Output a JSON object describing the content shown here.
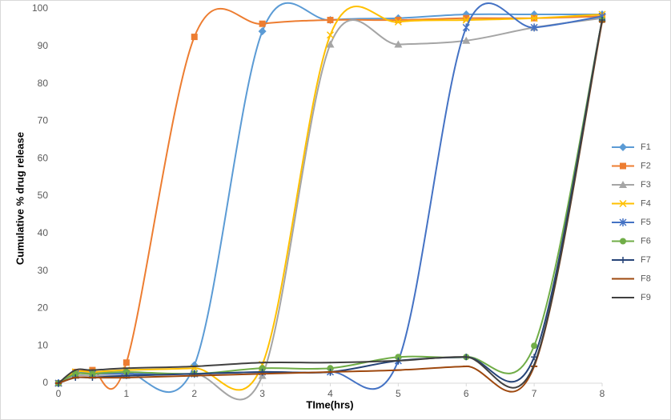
{
  "chart_data": {
    "type": "line",
    "xlabel": "TIme(hrs)",
    "ylabel": "Cumulative % drug release",
    "x": [
      0,
      0.25,
      0.5,
      1,
      2,
      3,
      4,
      5,
      6,
      7,
      8
    ],
    "xlim": [
      0,
      8
    ],
    "xticks": [
      0,
      1,
      2,
      3,
      4,
      5,
      6,
      7,
      8
    ],
    "ylim": [
      0,
      100
    ],
    "yticks": [
      0,
      10,
      20,
      30,
      40,
      50,
      60,
      70,
      80,
      90,
      100
    ],
    "grid": false,
    "legend": "right",
    "series": [
      {
        "name": "F1",
        "color": "#5b9bd5",
        "marker": "diamond",
        "values": [
          0,
          2.5,
          3,
          3,
          4.8,
          94,
          97,
          97.5,
          98.5,
          98.5,
          98.5
        ]
      },
      {
        "name": "F2",
        "color": "#ed7d31",
        "marker": "square",
        "values": [
          0,
          3,
          3.5,
          5.5,
          92.5,
          96,
          97,
          97,
          97.5,
          97.5,
          98
        ]
      },
      {
        "name": "F3",
        "color": "#a5a5a5",
        "marker": "triangle",
        "values": [
          0,
          2,
          2,
          2,
          2.5,
          2,
          90.5,
          90.5,
          91.5,
          95,
          97.5
        ]
      },
      {
        "name": "F4",
        "color": "#ffc000",
        "marker": "x",
        "values": [
          0,
          3,
          3,
          3.5,
          4,
          5,
          93,
          96.5,
          97,
          97.5,
          98.5
        ]
      },
      {
        "name": "F5",
        "color": "#4472c4",
        "marker": "star",
        "values": [
          0,
          2.5,
          2.5,
          2.5,
          2.5,
          3,
          3,
          6,
          95,
          95,
          98
        ]
      },
      {
        "name": "F6",
        "color": "#70ad47",
        "marker": "circle",
        "values": [
          0,
          2.5,
          2.5,
          3,
          2.5,
          4,
          4,
          7,
          7,
          10,
          97
        ]
      },
      {
        "name": "F7",
        "color": "#264478",
        "marker": "plus",
        "values": [
          0,
          1.5,
          1.5,
          2,
          2.5,
          3,
          3,
          6,
          7,
          7,
          97
        ]
      },
      {
        "name": "F8",
        "color": "#9e480e",
        "marker": "dash",
        "values": [
          0,
          1.5,
          1.5,
          1.5,
          2,
          2.5,
          3,
          3.5,
          4.5,
          4.5,
          96.5
        ]
      },
      {
        "name": "F9",
        "color": "#404040",
        "marker": "none",
        "values": [
          0,
          3.5,
          3.5,
          4,
          4.5,
          5.5,
          5.5,
          6,
          7,
          5,
          97
        ]
      }
    ]
  }
}
